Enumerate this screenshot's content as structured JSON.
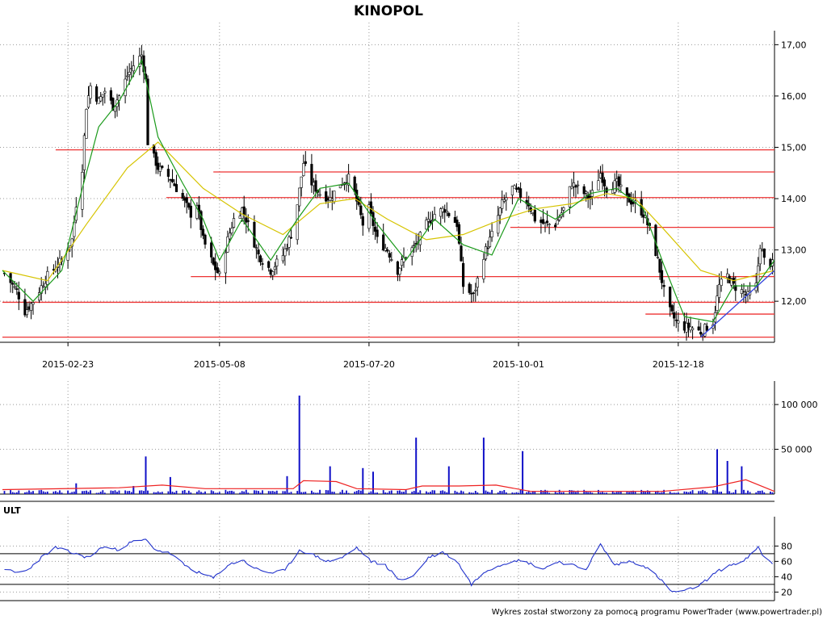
{
  "title": "KINOPOL",
  "footer": "Wykres został stworzony za pomocą programu PowerTrader (www.powertrader.pl)",
  "colors": {
    "candle": "#000000",
    "ma_short": "#1a9a1a",
    "ma_long": "#d6c400",
    "hline": "#ee3333",
    "trendline": "#3344dd",
    "volume_bar": "#1010c8",
    "volume_avg": "#ee2222",
    "ult_line": "#2233cc",
    "grid": "#999999"
  },
  "chart_data": [
    {
      "type": "candlestick",
      "title": "KINOPOL",
      "x_range": [
        "2015-01-22",
        "2016-02-03"
      ],
      "x_tick_labels": [
        "2015-02-23",
        "2015-05-08",
        "2015-07-20",
        "2015-10-01",
        "2015-12-18"
      ],
      "x_tick_dates": [
        "2015-02-23",
        "2015-05-08",
        "2015-07-20",
        "2015-10-01",
        "2015-12-18"
      ],
      "ylim": [
        11.2,
        17.1
      ],
      "y_ticks": [
        12,
        13,
        14,
        15,
        16,
        17
      ],
      "y_tick_labels": [
        "12,00",
        "13,00",
        "14,00",
        "15,00",
        "16,00",
        "17,00"
      ],
      "grid": true,
      "close_path": [
        [
          "2015-01-22",
          12.6
        ],
        [
          "2015-01-29",
          12.2
        ],
        [
          "2015-02-02",
          11.8
        ],
        [
          "2015-02-06",
          12.0
        ],
        [
          "2015-02-13",
          12.5
        ],
        [
          "2015-02-20",
          12.8
        ],
        [
          "2015-02-25",
          13.2
        ],
        [
          "2015-02-27",
          13.9
        ],
        [
          "2015-03-02",
          14.6
        ],
        [
          "2015-03-04",
          15.8
        ],
        [
          "2015-03-06",
          16.2
        ],
        [
          "2015-03-10",
          15.9
        ],
        [
          "2015-03-13",
          16.1
        ],
        [
          "2015-03-17",
          15.8
        ],
        [
          "2015-03-20",
          16.0
        ],
        [
          "2015-03-24",
          16.4
        ],
        [
          "2015-03-27",
          16.6
        ],
        [
          "2015-03-31",
          16.8
        ],
        [
          "2015-04-02",
          16.3
        ],
        [
          "2015-04-03",
          15.1
        ],
        [
          "2015-04-08",
          14.6
        ],
        [
          "2015-04-14",
          14.4
        ],
        [
          "2015-04-20",
          14.0
        ],
        [
          "2015-04-24",
          13.7
        ],
        [
          "2015-04-27",
          13.9
        ],
        [
          "2015-04-30",
          13.2
        ],
        [
          "2015-05-05",
          12.7
        ],
        [
          "2015-05-08",
          12.5
        ],
        [
          "2015-05-12",
          13.2
        ],
        [
          "2015-05-15",
          13.6
        ],
        [
          "2015-05-19",
          13.8
        ],
        [
          "2015-05-22",
          13.5
        ],
        [
          "2015-05-27",
          12.9
        ],
        [
          "2015-06-02",
          12.6
        ],
        [
          "2015-06-08",
          12.9
        ],
        [
          "2015-06-12",
          13.3
        ],
        [
          "2015-06-15",
          13.9
        ],
        [
          "2015-06-18",
          14.7
        ],
        [
          "2015-06-22",
          14.3
        ],
        [
          "2015-06-26",
          14.1
        ],
        [
          "2015-07-01",
          14.0
        ],
        [
          "2015-07-06",
          14.3
        ],
        [
          "2015-07-10",
          14.4
        ],
        [
          "2015-07-13",
          14.1
        ],
        [
          "2015-07-17",
          13.5
        ],
        [
          "2015-07-20",
          13.8
        ],
        [
          "2015-07-24",
          13.2
        ],
        [
          "2015-07-29",
          13.0
        ],
        [
          "2015-08-03",
          12.6
        ],
        [
          "2015-08-07",
          12.9
        ],
        [
          "2015-08-12",
          13.1
        ],
        [
          "2015-08-17",
          13.5
        ],
        [
          "2015-08-21",
          13.7
        ],
        [
          "2015-08-26",
          13.8
        ],
        [
          "2015-09-01",
          13.5
        ],
        [
          "2015-09-04",
          12.3
        ],
        [
          "2015-09-09",
          12.1
        ],
        [
          "2015-09-14",
          12.9
        ],
        [
          "2015-09-18",
          13.3
        ],
        [
          "2015-09-23",
          13.9
        ],
        [
          "2015-09-28",
          14.2
        ],
        [
          "2015-10-01",
          14.1
        ],
        [
          "2015-10-06",
          13.9
        ],
        [
          "2015-10-09",
          13.6
        ],
        [
          "2015-10-14",
          13.5
        ],
        [
          "2015-10-19",
          13.5
        ],
        [
          "2015-10-23",
          13.8
        ],
        [
          "2015-10-27",
          14.3
        ],
        [
          "2015-10-30",
          14.2
        ],
        [
          "2015-11-05",
          14.0
        ],
        [
          "2015-11-10",
          14.5
        ],
        [
          "2015-11-13",
          14.2
        ],
        [
          "2015-11-18",
          14.3
        ],
        [
          "2015-11-23",
          14.0
        ],
        [
          "2015-11-27",
          13.9
        ],
        [
          "2015-12-01",
          13.7
        ],
        [
          "2015-12-04",
          13.4
        ],
        [
          "2015-12-08",
          12.8
        ],
        [
          "2015-12-11",
          12.2
        ],
        [
          "2015-12-14",
          11.8
        ],
        [
          "2015-12-17",
          11.6
        ],
        [
          "2015-12-21",
          11.5
        ],
        [
          "2015-12-24",
          11.5
        ],
        [
          "2015-12-29",
          11.4
        ],
        [
          "2016-01-04",
          11.6
        ],
        [
          "2016-01-07",
          12.3
        ],
        [
          "2016-01-11",
          12.5
        ],
        [
          "2016-01-14",
          12.3
        ],
        [
          "2016-01-18",
          12.2
        ],
        [
          "2016-01-21",
          12.1
        ],
        [
          "2016-01-25",
          12.3
        ],
        [
          "2016-01-27",
          13.1
        ],
        [
          "2016-01-29",
          12.8
        ],
        [
          "2016-02-03",
          12.7
        ]
      ],
      "moving_average_short": [
        [
          "2015-01-22",
          12.6
        ],
        [
          "2015-02-06",
          12.0
        ],
        [
          "2015-02-20",
          12.6
        ],
        [
          "2015-03-02",
          14.2
        ],
        [
          "2015-03-10",
          15.4
        ],
        [
          "2015-03-20",
          15.9
        ],
        [
          "2015-03-31",
          16.7
        ],
        [
          "2015-04-08",
          15.2
        ],
        [
          "2015-04-20",
          14.3
        ],
        [
          "2015-04-30",
          13.6
        ],
        [
          "2015-05-08",
          12.8
        ],
        [
          "2015-05-19",
          13.6
        ],
        [
          "2015-06-02",
          12.8
        ],
        [
          "2015-06-15",
          13.6
        ],
        [
          "2015-06-26",
          14.2
        ],
        [
          "2015-07-10",
          14.3
        ],
        [
          "2015-07-24",
          13.5
        ],
        [
          "2015-08-07",
          12.8
        ],
        [
          "2015-08-21",
          13.6
        ],
        [
          "2015-09-04",
          13.1
        ],
        [
          "2015-09-18",
          12.9
        ],
        [
          "2015-10-01",
          14.0
        ],
        [
          "2015-10-19",
          13.6
        ],
        [
          "2015-11-05",
          14.1
        ],
        [
          "2015-11-18",
          14.2
        ],
        [
          "2015-12-01",
          13.8
        ],
        [
          "2015-12-11",
          12.7
        ],
        [
          "2015-12-21",
          11.7
        ],
        [
          "2016-01-04",
          11.6
        ],
        [
          "2016-01-14",
          12.3
        ],
        [
          "2016-01-25",
          12.3
        ],
        [
          "2016-02-03",
          12.8
        ]
      ],
      "moving_average_long": [
        [
          "2015-01-22",
          12.6
        ],
        [
          "2015-02-13",
          12.4
        ],
        [
          "2015-03-04",
          13.5
        ],
        [
          "2015-03-24",
          14.6
        ],
        [
          "2015-04-08",
          15.1
        ],
        [
          "2015-04-30",
          14.2
        ],
        [
          "2015-05-19",
          13.7
        ],
        [
          "2015-06-08",
          13.3
        ],
        [
          "2015-06-26",
          13.9
        ],
        [
          "2015-07-13",
          14.0
        ],
        [
          "2015-07-29",
          13.6
        ],
        [
          "2015-08-17",
          13.2
        ],
        [
          "2015-09-04",
          13.3
        ],
        [
          "2015-09-23",
          13.6
        ],
        [
          "2015-10-09",
          13.8
        ],
        [
          "2015-10-27",
          13.9
        ],
        [
          "2015-11-13",
          14.1
        ],
        [
          "2015-11-27",
          14.0
        ],
        [
          "2015-12-11",
          13.4
        ],
        [
          "2015-12-29",
          12.6
        ],
        [
          "2016-01-14",
          12.4
        ],
        [
          "2016-02-03",
          12.6
        ]
      ],
      "horizontal_levels": [
        {
          "y": 14.95,
          "x_from": "2015-02-17"
        },
        {
          "y": 14.52,
          "x_from": "2015-05-05"
        },
        {
          "y": 14.02,
          "x_from": "2015-04-12"
        },
        {
          "y": 13.44,
          "x_from": "2015-09-27"
        },
        {
          "y": 12.48,
          "x_from": "2015-04-24"
        },
        {
          "y": 11.98,
          "x_from": "2015-01-22"
        },
        {
          "y": 11.75,
          "x_from": "2015-12-02"
        },
        {
          "y": 11.3,
          "x_from": "2015-01-22"
        }
      ],
      "trendline": [
        [
          "2015-12-29",
          11.3
        ],
        [
          "2016-02-03",
          12.6
        ]
      ]
    },
    {
      "type": "bar",
      "name": "volume",
      "ylim": [
        0,
        110000
      ],
      "y_ticks": [
        50000,
        100000
      ],
      "y_tick_labels": [
        "50 000",
        "100 000"
      ],
      "spikes": [
        [
          "2015-02-27",
          12000
        ],
        [
          "2015-03-27",
          9000
        ],
        [
          "2015-04-02",
          42000
        ],
        [
          "2015-04-14",
          19000
        ],
        [
          "2015-06-10",
          20000
        ],
        [
          "2015-06-16",
          110000
        ],
        [
          "2015-07-01",
          31000
        ],
        [
          "2015-07-17",
          29000
        ],
        [
          "2015-07-22",
          25000
        ],
        [
          "2015-08-12",
          63000
        ],
        [
          "2015-08-28",
          31000
        ],
        [
          "2015-09-14",
          63000
        ],
        [
          "2015-10-03",
          48000
        ],
        [
          "2016-01-06",
          50000
        ],
        [
          "2016-01-11",
          37000
        ],
        [
          "2016-01-18",
          31000
        ]
      ],
      "base_level": 3000,
      "average_path": [
        [
          "2015-01-22",
          5000
        ],
        [
          "2015-03-20",
          7000
        ],
        [
          "2015-04-10",
          10000
        ],
        [
          "2015-05-01",
          6000
        ],
        [
          "2015-06-13",
          6000
        ],
        [
          "2015-06-18",
          15000
        ],
        [
          "2015-07-04",
          14000
        ],
        [
          "2015-07-14",
          6000
        ],
        [
          "2015-08-07",
          5000
        ],
        [
          "2015-08-15",
          9000
        ],
        [
          "2015-09-02",
          9000
        ],
        [
          "2015-09-20",
          10000
        ],
        [
          "2015-10-07",
          3000
        ],
        [
          "2015-12-10",
          3000
        ],
        [
          "2016-01-04",
          8000
        ],
        [
          "2016-01-20",
          16000
        ],
        [
          "2016-02-03",
          3000
        ]
      ]
    },
    {
      "type": "line",
      "name": "ULT",
      "label": "ULT",
      "ylim": [
        12,
        93
      ],
      "y_ticks": [
        20,
        40,
        60,
        80
      ],
      "reference_lines": [
        70,
        30
      ],
      "values": [
        [
          "2015-01-22",
          52
        ],
        [
          "2015-01-28",
          45
        ],
        [
          "2015-02-03",
          48
        ],
        [
          "2015-02-10",
          65
        ],
        [
          "2015-02-17",
          78
        ],
        [
          "2015-02-26",
          70
        ],
        [
          "2015-03-05",
          65
        ],
        [
          "2015-03-12",
          79
        ],
        [
          "2015-03-19",
          75
        ],
        [
          "2015-03-26",
          85
        ],
        [
          "2015-04-02",
          88
        ],
        [
          "2015-04-07",
          75
        ],
        [
          "2015-04-14",
          70
        ],
        [
          "2015-04-21",
          55
        ],
        [
          "2015-04-28",
          45
        ],
        [
          "2015-05-05",
          38
        ],
        [
          "2015-05-12",
          55
        ],
        [
          "2015-05-19",
          62
        ],
        [
          "2015-05-26",
          50
        ],
        [
          "2015-06-02",
          45
        ],
        [
          "2015-06-09",
          48
        ],
        [
          "2015-06-16",
          75
        ],
        [
          "2015-06-23",
          68
        ],
        [
          "2015-06-30",
          60
        ],
        [
          "2015-07-07",
          65
        ],
        [
          "2015-07-14",
          78
        ],
        [
          "2015-07-21",
          60
        ],
        [
          "2015-07-28",
          55
        ],
        [
          "2015-08-04",
          35
        ],
        [
          "2015-08-11",
          42
        ],
        [
          "2015-08-18",
          65
        ],
        [
          "2015-08-25",
          72
        ],
        [
          "2015-09-01",
          60
        ],
        [
          "2015-09-08",
          30
        ],
        [
          "2015-09-15",
          48
        ],
        [
          "2015-09-22",
          55
        ],
        [
          "2015-09-29",
          62
        ],
        [
          "2015-10-06",
          58
        ],
        [
          "2015-10-13",
          50
        ],
        [
          "2015-10-20",
          60
        ],
        [
          "2015-10-27",
          55
        ],
        [
          "2015-11-03",
          50
        ],
        [
          "2015-11-10",
          82
        ],
        [
          "2015-11-17",
          55
        ],
        [
          "2015-11-24",
          60
        ],
        [
          "2015-12-01",
          55
        ],
        [
          "2015-12-08",
          40
        ],
        [
          "2015-12-15",
          20
        ],
        [
          "2015-12-22",
          22
        ],
        [
          "2015-12-29",
          30
        ],
        [
          "2016-01-05",
          45
        ],
        [
          "2016-01-12",
          55
        ],
        [
          "2016-01-19",
          60
        ],
        [
          "2016-01-26",
          78
        ],
        [
          "2016-01-29",
          65
        ],
        [
          "2016-02-03",
          55
        ]
      ]
    }
  ]
}
